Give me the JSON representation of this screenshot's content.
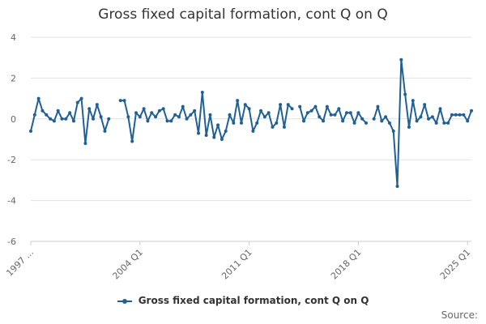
{
  "chart_data": {
    "type": "line",
    "title": "Gross fixed capital formation, cont Q on Q",
    "xlabel": "",
    "ylabel": "",
    "ylim": [
      -6,
      4
    ],
    "yticks": [
      4,
      2,
      0,
      -2,
      -4,
      -6
    ],
    "xticks": [
      "1997 ...",
      "2004 Q1",
      "2011 Q1",
      "2018 Q1",
      "2025 Q1"
    ],
    "grid": true,
    "legend_position": "bottom",
    "color": "#206095",
    "start": "1997 Q1",
    "source_label": "Source:",
    "series": [
      {
        "name": "Gross fixed capital formation, cont Q on Q",
        "values": [
          -0.6,
          0.2,
          1.0,
          0.4,
          0.2,
          0.0,
          -0.1,
          0.4,
          0.0,
          0.0,
          0.3,
          -0.1,
          0.8,
          1.0,
          -1.2,
          0.5,
          0.0,
          0.7,
          0.1,
          -0.6,
          0.0,
          null,
          null,
          0.9,
          0.9,
          0.1,
          -1.1,
          0.3,
          0.1,
          0.5,
          -0.1,
          0.3,
          0.1,
          0.4,
          0.5,
          -0.1,
          -0.1,
          0.2,
          0.1,
          0.6,
          0.0,
          0.2,
          0.4,
          -0.7,
          1.3,
          -0.8,
          0.2,
          -0.9,
          -0.3,
          -1.0,
          -0.6,
          0.2,
          -0.2,
          0.9,
          -0.2,
          0.7,
          0.5,
          -0.6,
          -0.2,
          0.4,
          0.1,
          0.3,
          -0.4,
          -0.2,
          0.7,
          -0.4,
          0.7,
          0.5,
          null,
          0.6,
          -0.1,
          0.3,
          0.4,
          0.6,
          0.1,
          -0.1,
          0.6,
          0.2,
          0.2,
          0.5,
          -0.1,
          0.3,
          0.3,
          -0.2,
          0.3,
          0.0,
          -0.2,
          null,
          0.0,
          0.6,
          -0.1,
          0.1,
          -0.2,
          -0.6,
          -3.3,
          2.9,
          1.2,
          -0.4,
          0.9,
          -0.1,
          0.1,
          0.7,
          0.0,
          0.1,
          -0.2,
          0.5,
          -0.2,
          -0.2,
          0.2,
          0.2,
          0.2,
          0.2,
          -0.1,
          0.4
        ]
      }
    ]
  }
}
